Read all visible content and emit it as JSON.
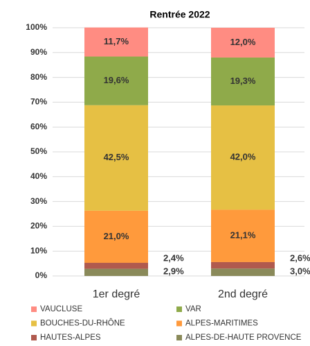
{
  "chart_data": {
    "type": "stacked_bar",
    "title": "Rentrée 2022",
    "categories": [
      "1er degré",
      "2nd degré"
    ],
    "series": [
      {
        "name": "VAUCLUSE",
        "color": "#ff8c82",
        "values": [
          11.7,
          12.0
        ],
        "value_labels": [
          "11,7%",
          "12,0%"
        ]
      },
      {
        "name": "VAR",
        "color": "#8faa4a",
        "values": [
          19.6,
          19.3
        ],
        "value_labels": [
          "19,6%",
          "19,3%"
        ]
      },
      {
        "name": "BOUCHES-DU-RHÔNE",
        "color": "#e6c044",
        "values": [
          42.5,
          42.0
        ],
        "value_labels": [
          "42,5%",
          "42,0%"
        ]
      },
      {
        "name": "ALPES-MARITIMES",
        "color": "#ff9a3c",
        "values": [
          21.0,
          21.1
        ],
        "value_labels": [
          "21,0%",
          "21,1%"
        ]
      },
      {
        "name": "HAUTES-ALPES",
        "color": "#b05a4e",
        "values": [
          2.4,
          2.6
        ],
        "value_labels": [
          "2,4%",
          "2,6%"
        ]
      },
      {
        "name": "ALPES-DE-HAUTE PROVENCE",
        "color": "#8a8a5a",
        "values": [
          2.9,
          3.0
        ],
        "value_labels": [
          "2,9%",
          "3,0%"
        ]
      }
    ],
    "ylim": [
      0,
      100
    ],
    "yticks": [
      {
        "value": 0,
        "label": "0%"
      },
      {
        "value": 10,
        "label": "10%"
      },
      {
        "value": 20,
        "label": "20%"
      },
      {
        "value": 30,
        "label": "30%"
      },
      {
        "value": 40,
        "label": "40%"
      },
      {
        "value": 50,
        "label": "50%"
      },
      {
        "value": 60,
        "label": "60%"
      },
      {
        "value": 70,
        "label": "70%"
      },
      {
        "value": 80,
        "label": "80%"
      },
      {
        "value": 90,
        "label": "90%"
      },
      {
        "value": 100,
        "label": "100%"
      }
    ],
    "grid": true
  }
}
